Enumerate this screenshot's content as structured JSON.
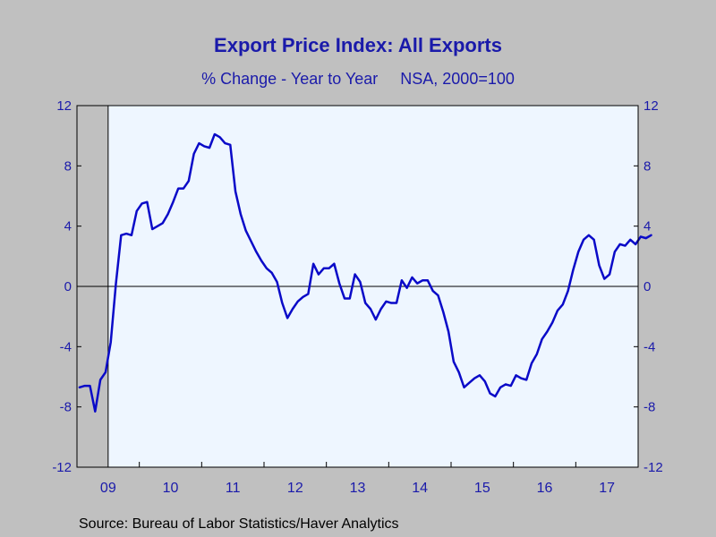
{
  "chart_data": {
    "type": "line",
    "title": "Export Price Index: All Exports",
    "subtitle": "% Change - Year to Year     NSA, 2000=100",
    "source": "Source:  Bureau of Labor Statistics/Haver Analytics",
    "ylim": [
      -12,
      12
    ],
    "yticks": [
      "12",
      "8",
      "4",
      "0",
      "-4",
      "-8",
      "-12"
    ],
    "ytick_values": [
      12,
      8,
      4,
      0,
      -4,
      -8,
      -12
    ],
    "x_start": "2009-01",
    "x_end": "2017-12",
    "year_labels": [
      "09",
      "10",
      "11",
      "12",
      "13",
      "14",
      "15",
      "16",
      "17"
    ],
    "recession_shading": [
      "2009-01",
      "2009-06"
    ],
    "grid": false,
    "zero_line": true,
    "colors": {
      "line": "#0a0ac8",
      "plot_bg": "#eef6ff",
      "text": "#1a1aaa",
      "recession": "#c0c0c0",
      "background": "#c0c0c0"
    },
    "series": [
      {
        "values": [
          -6.7,
          -6.6,
          -6.6,
          -8.3,
          -6.2,
          -5.7,
          -3.7,
          0.2,
          3.4,
          3.5,
          3.4,
          5.0,
          5.5,
          5.6,
          3.8,
          4.0,
          4.2,
          4.8,
          5.6,
          6.5,
          6.5,
          7.0,
          8.8,
          9.5,
          9.3,
          9.2,
          10.1,
          9.9,
          9.5,
          9.4,
          6.3,
          4.8,
          3.7,
          3.0,
          2.3,
          1.7,
          1.2,
          0.9,
          0.3,
          -1.1,
          -2.1,
          -1.5,
          -1.0,
          -0.7,
          -0.5,
          1.5,
          0.8,
          1.2,
          1.2,
          1.5,
          0.2,
          -0.8,
          -0.8,
          0.8,
          0.3,
          -1.1,
          -1.5,
          -2.2,
          -1.5,
          -1.0,
          -1.1,
          -1.1,
          0.4,
          -0.1,
          0.6,
          0.2,
          0.4,
          0.4,
          -0.3,
          -0.6,
          -1.7,
          -3.0,
          -5.0,
          -5.7,
          -6.7,
          -6.4,
          -6.1,
          -5.9,
          -6.3,
          -7.1,
          -7.3,
          -6.7,
          -6.5,
          -6.6,
          -5.9,
          -6.1,
          -6.2,
          -5.1,
          -4.5,
          -3.5,
          -3.0,
          -2.4,
          -1.6,
          -1.2,
          -0.3,
          1.1,
          2.3,
          3.1,
          3.4,
          3.1,
          1.4,
          0.5,
          0.8,
          2.3,
          2.8,
          2.7,
          3.1,
          2.8,
          3.3,
          3.2,
          3.4
        ]
      }
    ]
  }
}
